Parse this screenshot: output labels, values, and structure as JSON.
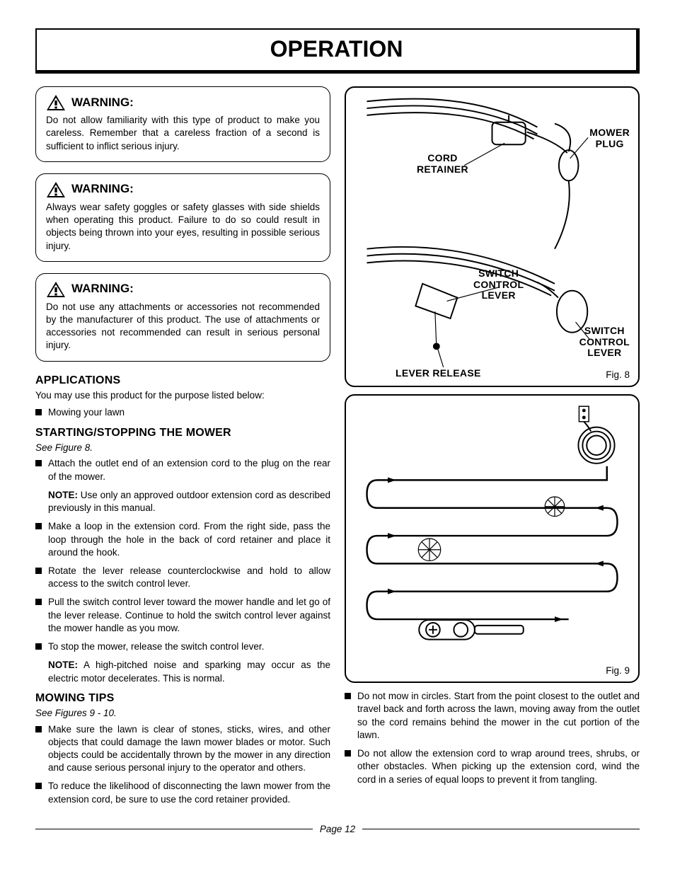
{
  "page_title": "OPERATION",
  "warnings": [
    {
      "label": "WARNING:",
      "text": "Do not allow familiarity with this type of product to make you careless. Remember that a careless fraction of a second is sufficient to inflict serious injury."
    },
    {
      "label": "WARNING:",
      "text": "Always wear safety goggles or safety glasses with side shields when operating this product. Failure to do so could result in objects being thrown into your eyes, resulting in possible serious injury."
    },
    {
      "label": "WARNING:",
      "text": "Do not use any attachments or accessories not recommended by the manufacturer of this product. The use of attachments or accessories not recommended can result in serious personal injury."
    }
  ],
  "applications": {
    "heading": "APPLICATIONS",
    "intro": "You may use this product for the purpose listed below:",
    "items": [
      "Mowing your lawn"
    ]
  },
  "starting": {
    "heading": "STARTING/STOPPING THE MOWER",
    "see": "See Figure 8.",
    "steps": [
      "Attach the outlet end of an extension cord to the plug on the rear of the mower.",
      "Make a loop in the extension cord. From the right side, pass the loop through the hole in the back of cord retainer and place it around the hook.",
      "Rotate the lever release counterclockwise and hold to allow access to the switch control lever.",
      "Pull the switch control lever toward the mower handle and let go of the lever release. Continue to hold the switch control lever against the mower handle as you mow.",
      "To stop the mower, release the switch control lever."
    ],
    "note1_label": "NOTE:",
    "note1_text": " Use only an approved outdoor extension cord as described previously in this manual.",
    "note2_label": "NOTE:",
    "note2_text": " A high-pitched noise and sparking may occur as the electric motor decelerates. This is normal."
  },
  "mowing": {
    "heading": "MOWING TIPS",
    "see": "See Figures 9 - 10.",
    "left_items": [
      "Make sure the lawn is clear of stones, sticks, wires, and other objects that could damage the lawn mower blades or motor. Such objects could be accidentally thrown by the mower in any direction and cause serious personal injury to the operator and others.",
      "To reduce the likelihood of disconnecting the lawn mower from the extension cord, be sure to use the cord retainer provided."
    ],
    "right_items": [
      "Do not mow in circles. Start from the point closest to the outlet and travel back and forth across the lawn, moving away from the outlet so the cord remains behind the mower in the cut portion of the lawn.",
      "Do not allow the extension cord to wrap around trees, shrubs, or other obstacles. When picking up the extension cord, wind the cord in a series of equal loops to prevent it from tangling."
    ]
  },
  "figures": {
    "fig8": {
      "caption": "Fig. 8",
      "labels": {
        "mower_plug": "MOWER\nPLUG",
        "cord_retainer": "CORD\nRETAINER",
        "switch_control_lever_1": "SWITCH\nCONTROL\nLEVER",
        "switch_control_lever_2": "SWITCH\nCONTROL\nLEVER",
        "lever_release": "LEVER RELEASE"
      }
    },
    "fig9": {
      "caption": "Fig. 9"
    }
  },
  "footer_page": "Page 12",
  "colors": {
    "text": "#000000",
    "bg": "#ffffff"
  }
}
